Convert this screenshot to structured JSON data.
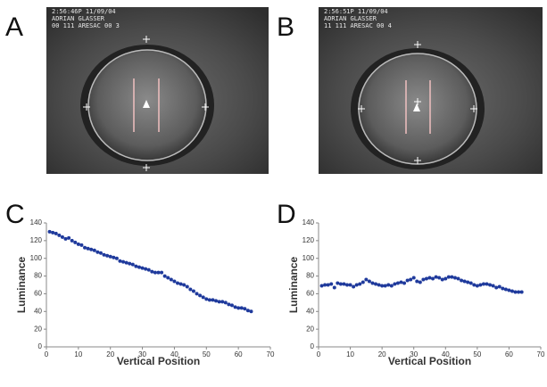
{
  "panels": [
    "A",
    "B",
    "C",
    "D"
  ],
  "photos": [
    {
      "lines": [
        "2:56:46P 11/09/04",
        "ADRIAN GLASSER",
        "00 111 ARESAC 00 3"
      ]
    },
    {
      "lines": [
        "2:56:51P 11/09/04",
        "ADRIAN GLASSER",
        "11 111 ARESAC 00 4"
      ]
    }
  ],
  "chart_data": [
    {
      "type": "scatter",
      "xlabel": "Vertical Position",
      "ylabel": "Luminance",
      "color": "#1f3a9c",
      "xlim": [
        0,
        70
      ],
      "xticks": [
        0,
        10,
        20,
        30,
        40,
        50,
        60,
        70
      ],
      "ylim": [
        0,
        140
      ],
      "yticks": [
        0,
        20,
        40,
        60,
        80,
        100,
        120,
        140
      ],
      "x": [
        1,
        2,
        3,
        4,
        5,
        6,
        7,
        8,
        9,
        10,
        11,
        12,
        13,
        14,
        15,
        16,
        17,
        18,
        19,
        20,
        21,
        22,
        23,
        24,
        25,
        26,
        27,
        28,
        29,
        30,
        31,
        32,
        33,
        34,
        35,
        36,
        37,
        38,
        39,
        40,
        41,
        42,
        43,
        44,
        45,
        46,
        47,
        48,
        49,
        50,
        51,
        52,
        53,
        54,
        55,
        56,
        57,
        58,
        59,
        60,
        61,
        62,
        63,
        64
      ],
      "y": [
        130,
        129,
        128,
        126,
        124,
        122,
        123,
        120,
        118,
        116,
        115,
        112,
        111,
        110,
        109,
        107,
        106,
        104,
        103,
        102,
        101,
        100,
        97,
        96,
        95,
        94,
        93,
        91,
        90,
        89,
        88,
        87,
        85,
        84,
        84,
        84,
        80,
        78,
        76,
        74,
        72,
        71,
        70,
        68,
        65,
        63,
        60,
        58,
        56,
        54,
        53,
        53,
        52,
        51,
        51,
        50,
        48,
        47,
        45,
        44,
        44,
        43,
        41,
        40
      ]
    },
    {
      "type": "scatter",
      "xlabel": "Vertical Position",
      "ylabel": "Luminance",
      "color": "#1f3a9c",
      "xlim": [
        0,
        70
      ],
      "xticks": [
        0,
        10,
        20,
        30,
        40,
        50,
        60,
        70
      ],
      "ylim": [
        0,
        140
      ],
      "yticks": [
        0,
        20,
        40,
        60,
        80,
        100,
        120,
        140
      ],
      "x": [
        1,
        2,
        3,
        4,
        5,
        6,
        7,
        8,
        9,
        10,
        11,
        12,
        13,
        14,
        15,
        16,
        17,
        18,
        19,
        20,
        21,
        22,
        23,
        24,
        25,
        26,
        27,
        28,
        29,
        30,
        31,
        32,
        33,
        34,
        35,
        36,
        37,
        38,
        39,
        40,
        41,
        42,
        43,
        44,
        45,
        46,
        47,
        48,
        49,
        50,
        51,
        52,
        53,
        54,
        55,
        56,
        57,
        58,
        59,
        60,
        61,
        62,
        63,
        64
      ],
      "y": [
        69,
        70,
        70,
        71,
        67,
        72,
        71,
        71,
        70,
        70,
        68,
        70,
        71,
        73,
        76,
        74,
        72,
        71,
        70,
        69,
        69,
        70,
        69,
        71,
        72,
        73,
        72,
        75,
        76,
        78,
        74,
        73,
        76,
        77,
        78,
        77,
        79,
        78,
        76,
        77,
        79,
        79,
        78,
        77,
        75,
        74,
        73,
        72,
        70,
        69,
        70,
        71,
        71,
        70,
        69,
        67,
        68,
        66,
        65,
        64,
        63,
        62,
        62,
        62
      ]
    }
  ]
}
